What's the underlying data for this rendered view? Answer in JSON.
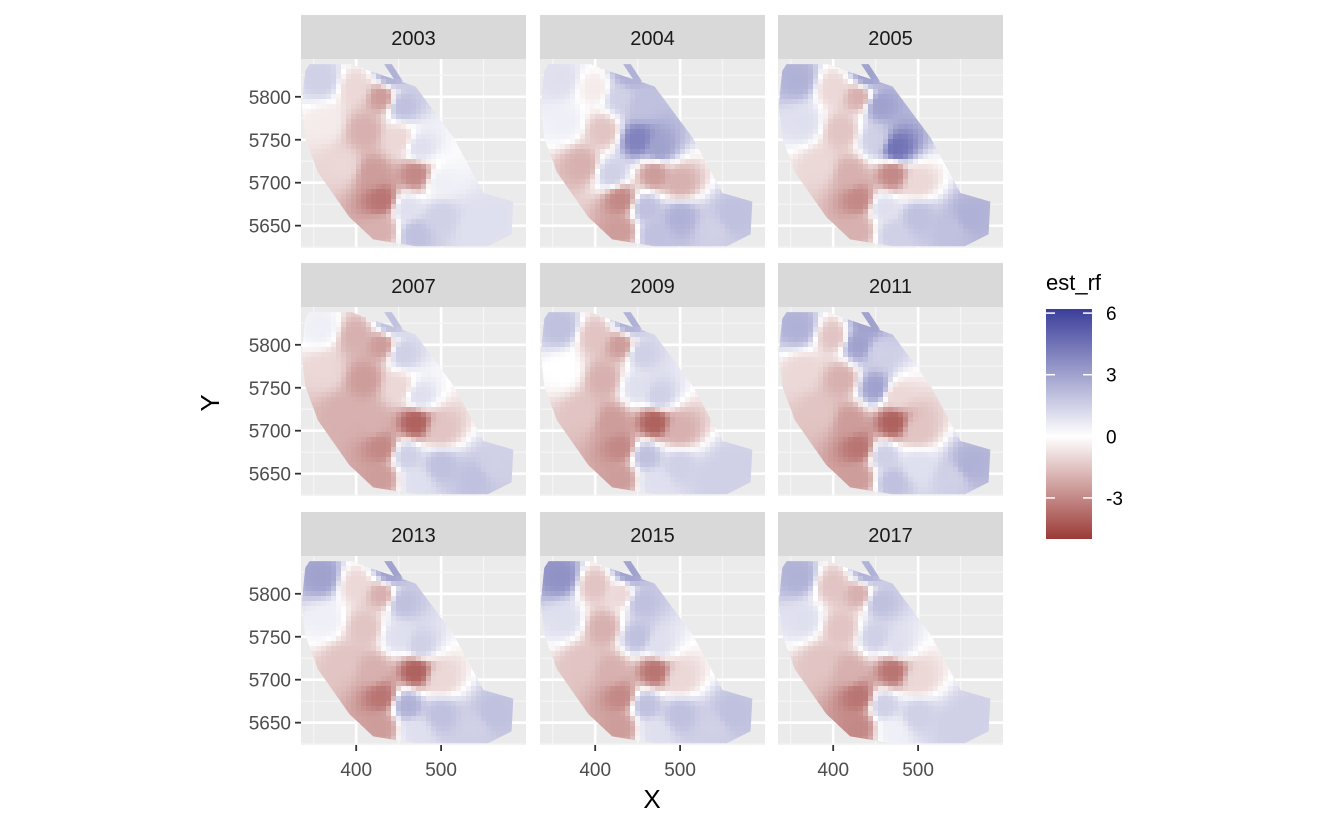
{
  "chart_data": {
    "type": "heatmap",
    "facet_labels": [
      "2003",
      "2004",
      "2005",
      "2007",
      "2009",
      "2011",
      "2013",
      "2015",
      "2017"
    ],
    "xlabel": "X",
    "ylabel": "Y",
    "x_ticks": [
      400,
      500
    ],
    "y_ticks": [
      5650,
      5700,
      5750,
      5800
    ],
    "xlim": [
      335,
      600
    ],
    "ylim": [
      5624,
      5844
    ],
    "legend": {
      "title": "est_rf",
      "ticks": [
        6,
        3,
        0,
        -3
      ],
      "range": [
        -5,
        6.2
      ],
      "placement": "right",
      "low_color": "#9b3a36",
      "mid_color": "#ffffff",
      "high_color": "#3b3e9a"
    },
    "grid": true,
    "panel_background": "#ebebeb",
    "strip_background": "#d9d9d9",
    "region_outline": [
      [
        345,
        5838
      ],
      [
        395,
        5838
      ],
      [
        410,
        5832
      ],
      [
        470,
        5812
      ],
      [
        515,
        5752
      ],
      [
        550,
        5688
      ],
      [
        585,
        5678
      ],
      [
        583,
        5640
      ],
      [
        555,
        5626
      ],
      [
        470,
        5626
      ],
      [
        420,
        5634
      ],
      [
        392,
        5660
      ],
      [
        355,
        5712
      ],
      [
        340,
        5752
      ],
      [
        336,
        5790
      ],
      [
        340,
        5830
      ]
    ],
    "region_outline_b": [
      [
        433,
        5838
      ],
      [
        442,
        5838
      ],
      [
        455,
        5818
      ],
      [
        449,
        5814
      ]
    ],
    "panels": [
      {
        "label": "2003",
        "points": [
          {
            "x": 360,
            "y": 5820,
            "v": 1.5
          },
          {
            "x": 400,
            "y": 5810,
            "v": -1.0
          },
          {
            "x": 430,
            "y": 5800,
            "v": -2.5
          },
          {
            "x": 455,
            "y": 5790,
            "v": 2.0
          },
          {
            "x": 365,
            "y": 5770,
            "v": -0.5
          },
          {
            "x": 410,
            "y": 5760,
            "v": -2.0
          },
          {
            "x": 450,
            "y": 5750,
            "v": -1.0
          },
          {
            "x": 475,
            "y": 5740,
            "v": 1.0
          },
          {
            "x": 385,
            "y": 5720,
            "v": -1.0
          },
          {
            "x": 420,
            "y": 5710,
            "v": -2.5
          },
          {
            "x": 470,
            "y": 5710,
            "v": -3.0
          },
          {
            "x": 500,
            "y": 5700,
            "v": 0.5
          },
          {
            "x": 430,
            "y": 5680,
            "v": -3.5
          },
          {
            "x": 460,
            "y": 5670,
            "v": 1.0
          },
          {
            "x": 500,
            "y": 5660,
            "v": 1.5
          },
          {
            "x": 560,
            "y": 5660,
            "v": 1.0
          },
          {
            "x": 430,
            "y": 5645,
            "v": -2.0
          },
          {
            "x": 470,
            "y": 5640,
            "v": 2.0
          },
          {
            "x": 540,
            "y": 5645,
            "v": 1.0
          },
          {
            "x": 440,
            "y": 5825,
            "v": 2.5
          }
        ]
      },
      {
        "label": "2004",
        "points": [
          {
            "x": 360,
            "y": 5820,
            "v": 1.0
          },
          {
            "x": 400,
            "y": 5810,
            "v": -0.5
          },
          {
            "x": 430,
            "y": 5800,
            "v": 1.5
          },
          {
            "x": 455,
            "y": 5790,
            "v": 2.0
          },
          {
            "x": 365,
            "y": 5770,
            "v": 0.5
          },
          {
            "x": 410,
            "y": 5760,
            "v": -1.5
          },
          {
            "x": 450,
            "y": 5750,
            "v": 4.0
          },
          {
            "x": 475,
            "y": 5740,
            "v": 3.0
          },
          {
            "x": 385,
            "y": 5720,
            "v": -2.0
          },
          {
            "x": 420,
            "y": 5710,
            "v": 1.5
          },
          {
            "x": 470,
            "y": 5710,
            "v": -2.5
          },
          {
            "x": 500,
            "y": 5700,
            "v": -2.0
          },
          {
            "x": 430,
            "y": 5680,
            "v": -3.0
          },
          {
            "x": 460,
            "y": 5670,
            "v": 2.0
          },
          {
            "x": 500,
            "y": 5660,
            "v": 2.5
          },
          {
            "x": 560,
            "y": 5660,
            "v": 2.0
          },
          {
            "x": 430,
            "y": 5645,
            "v": -2.5
          },
          {
            "x": 470,
            "y": 5640,
            "v": 2.0
          },
          {
            "x": 540,
            "y": 5645,
            "v": 1.5
          },
          {
            "x": 440,
            "y": 5825,
            "v": 2.5
          }
        ]
      },
      {
        "label": "2005",
        "points": [
          {
            "x": 360,
            "y": 5820,
            "v": 2.5
          },
          {
            "x": 400,
            "y": 5810,
            "v": -1.0
          },
          {
            "x": 430,
            "y": 5800,
            "v": -2.0
          },
          {
            "x": 455,
            "y": 5790,
            "v": 3.0
          },
          {
            "x": 365,
            "y": 5770,
            "v": 1.0
          },
          {
            "x": 410,
            "y": 5760,
            "v": -1.5
          },
          {
            "x": 450,
            "y": 5750,
            "v": 1.5
          },
          {
            "x": 475,
            "y": 5740,
            "v": 4.5
          },
          {
            "x": 385,
            "y": 5720,
            "v": -1.0
          },
          {
            "x": 420,
            "y": 5710,
            "v": -2.0
          },
          {
            "x": 470,
            "y": 5710,
            "v": -3.0
          },
          {
            "x": 500,
            "y": 5700,
            "v": -1.0
          },
          {
            "x": 430,
            "y": 5680,
            "v": -3.0
          },
          {
            "x": 460,
            "y": 5670,
            "v": 1.0
          },
          {
            "x": 500,
            "y": 5660,
            "v": 2.0
          },
          {
            "x": 560,
            "y": 5660,
            "v": 2.5
          },
          {
            "x": 430,
            "y": 5645,
            "v": -2.0
          },
          {
            "x": 470,
            "y": 5640,
            "v": 1.5
          },
          {
            "x": 540,
            "y": 5645,
            "v": 2.0
          },
          {
            "x": 440,
            "y": 5825,
            "v": 3.0
          }
        ]
      },
      {
        "label": "2007",
        "points": [
          {
            "x": 360,
            "y": 5820,
            "v": 0.5
          },
          {
            "x": 400,
            "y": 5810,
            "v": -2.0
          },
          {
            "x": 430,
            "y": 5800,
            "v": -2.5
          },
          {
            "x": 455,
            "y": 5790,
            "v": 1.5
          },
          {
            "x": 365,
            "y": 5770,
            "v": -1.0
          },
          {
            "x": 410,
            "y": 5760,
            "v": -2.5
          },
          {
            "x": 450,
            "y": 5750,
            "v": -1.0
          },
          {
            "x": 475,
            "y": 5740,
            "v": 1.0
          },
          {
            "x": 385,
            "y": 5720,
            "v": -2.0
          },
          {
            "x": 420,
            "y": 5710,
            "v": -2.0
          },
          {
            "x": 470,
            "y": 5710,
            "v": -4.0
          },
          {
            "x": 500,
            "y": 5700,
            "v": -1.5
          },
          {
            "x": 430,
            "y": 5680,
            "v": -3.0
          },
          {
            "x": 460,
            "y": 5670,
            "v": 1.5
          },
          {
            "x": 500,
            "y": 5660,
            "v": 2.0
          },
          {
            "x": 560,
            "y": 5660,
            "v": 1.5
          },
          {
            "x": 430,
            "y": 5645,
            "v": -2.5
          },
          {
            "x": 470,
            "y": 5640,
            "v": 1.0
          },
          {
            "x": 540,
            "y": 5645,
            "v": 2.0
          },
          {
            "x": 440,
            "y": 5825,
            "v": 2.0
          }
        ]
      },
      {
        "label": "2009",
        "points": [
          {
            "x": 360,
            "y": 5820,
            "v": 2.0
          },
          {
            "x": 400,
            "y": 5810,
            "v": -1.5
          },
          {
            "x": 430,
            "y": 5800,
            "v": -2.5
          },
          {
            "x": 455,
            "y": 5790,
            "v": 1.5
          },
          {
            "x": 365,
            "y": 5770,
            "v": 0.0
          },
          {
            "x": 410,
            "y": 5760,
            "v": -2.0
          },
          {
            "x": 450,
            "y": 5750,
            "v": 1.0
          },
          {
            "x": 475,
            "y": 5740,
            "v": 1.5
          },
          {
            "x": 385,
            "y": 5720,
            "v": -1.5
          },
          {
            "x": 420,
            "y": 5710,
            "v": -2.5
          },
          {
            "x": 470,
            "y": 5710,
            "v": -4.0
          },
          {
            "x": 500,
            "y": 5700,
            "v": -2.0
          },
          {
            "x": 430,
            "y": 5680,
            "v": -3.0
          },
          {
            "x": 460,
            "y": 5670,
            "v": 2.0
          },
          {
            "x": 500,
            "y": 5660,
            "v": 1.5
          },
          {
            "x": 560,
            "y": 5660,
            "v": 1.5
          },
          {
            "x": 430,
            "y": 5645,
            "v": -2.5
          },
          {
            "x": 470,
            "y": 5640,
            "v": 1.0
          },
          {
            "x": 540,
            "y": 5645,
            "v": 1.5
          },
          {
            "x": 440,
            "y": 5825,
            "v": 2.5
          }
        ]
      },
      {
        "label": "2011",
        "points": [
          {
            "x": 360,
            "y": 5820,
            "v": 2.5
          },
          {
            "x": 400,
            "y": 5810,
            "v": -1.5
          },
          {
            "x": 430,
            "y": 5800,
            "v": 3.0
          },
          {
            "x": 455,
            "y": 5790,
            "v": 1.5
          },
          {
            "x": 365,
            "y": 5770,
            "v": -1.0
          },
          {
            "x": 410,
            "y": 5760,
            "v": -2.0
          },
          {
            "x": 450,
            "y": 5750,
            "v": 3.0
          },
          {
            "x": 475,
            "y": 5740,
            "v": -1.0
          },
          {
            "x": 385,
            "y": 5720,
            "v": -1.5
          },
          {
            "x": 420,
            "y": 5710,
            "v": -2.5
          },
          {
            "x": 470,
            "y": 5710,
            "v": -4.0
          },
          {
            "x": 500,
            "y": 5700,
            "v": -1.5
          },
          {
            "x": 430,
            "y": 5680,
            "v": -3.5
          },
          {
            "x": 460,
            "y": 5670,
            "v": 1.5
          },
          {
            "x": 500,
            "y": 5660,
            "v": 1.0
          },
          {
            "x": 560,
            "y": 5660,
            "v": 2.5
          },
          {
            "x": 430,
            "y": 5645,
            "v": -2.5
          },
          {
            "x": 470,
            "y": 5640,
            "v": 2.0
          },
          {
            "x": 540,
            "y": 5645,
            "v": 1.5
          },
          {
            "x": 440,
            "y": 5825,
            "v": 3.0
          }
        ]
      },
      {
        "label": "2013",
        "points": [
          {
            "x": 360,
            "y": 5820,
            "v": 3.0
          },
          {
            "x": 400,
            "y": 5810,
            "v": -1.0
          },
          {
            "x": 430,
            "y": 5800,
            "v": -2.0
          },
          {
            "x": 455,
            "y": 5790,
            "v": 2.0
          },
          {
            "x": 365,
            "y": 5770,
            "v": 0.5
          },
          {
            "x": 410,
            "y": 5760,
            "v": -1.5
          },
          {
            "x": 450,
            "y": 5750,
            "v": 1.0
          },
          {
            "x": 475,
            "y": 5740,
            "v": 1.5
          },
          {
            "x": 385,
            "y": 5720,
            "v": -1.5
          },
          {
            "x": 420,
            "y": 5710,
            "v": -2.0
          },
          {
            "x": 470,
            "y": 5710,
            "v": -4.0
          },
          {
            "x": 500,
            "y": 5700,
            "v": -1.0
          },
          {
            "x": 430,
            "y": 5680,
            "v": -3.5
          },
          {
            "x": 460,
            "y": 5670,
            "v": 2.5
          },
          {
            "x": 500,
            "y": 5660,
            "v": 2.0
          },
          {
            "x": 560,
            "y": 5660,
            "v": 2.0
          },
          {
            "x": 430,
            "y": 5645,
            "v": -2.5
          },
          {
            "x": 470,
            "y": 5640,
            "v": 1.0
          },
          {
            "x": 540,
            "y": 5645,
            "v": 1.5
          },
          {
            "x": 440,
            "y": 5825,
            "v": 3.0
          }
        ]
      },
      {
        "label": "2015",
        "points": [
          {
            "x": 360,
            "y": 5820,
            "v": 3.5
          },
          {
            "x": 400,
            "y": 5810,
            "v": -1.5
          },
          {
            "x": 430,
            "y": 5800,
            "v": -1.0
          },
          {
            "x": 455,
            "y": 5790,
            "v": 2.0
          },
          {
            "x": 365,
            "y": 5770,
            "v": 1.0
          },
          {
            "x": 410,
            "y": 5760,
            "v": -2.0
          },
          {
            "x": 450,
            "y": 5750,
            "v": 2.0
          },
          {
            "x": 475,
            "y": 5740,
            "v": 1.0
          },
          {
            "x": 385,
            "y": 5720,
            "v": -1.5
          },
          {
            "x": 420,
            "y": 5710,
            "v": -2.0
          },
          {
            "x": 470,
            "y": 5710,
            "v": -3.5
          },
          {
            "x": 500,
            "y": 5700,
            "v": -1.0
          },
          {
            "x": 430,
            "y": 5680,
            "v": -3.0
          },
          {
            "x": 460,
            "y": 5670,
            "v": 2.0
          },
          {
            "x": 500,
            "y": 5660,
            "v": 2.0
          },
          {
            "x": 560,
            "y": 5660,
            "v": 2.0
          },
          {
            "x": 430,
            "y": 5645,
            "v": -2.5
          },
          {
            "x": 470,
            "y": 5640,
            "v": 1.0
          },
          {
            "x": 540,
            "y": 5645,
            "v": 1.5
          },
          {
            "x": 440,
            "y": 5825,
            "v": 3.0
          }
        ]
      },
      {
        "label": "2017",
        "points": [
          {
            "x": 360,
            "y": 5820,
            "v": 2.5
          },
          {
            "x": 400,
            "y": 5810,
            "v": -1.5
          },
          {
            "x": 430,
            "y": 5800,
            "v": -2.0
          },
          {
            "x": 455,
            "y": 5790,
            "v": 2.0
          },
          {
            "x": 365,
            "y": 5770,
            "v": 1.0
          },
          {
            "x": 410,
            "y": 5760,
            "v": -1.5
          },
          {
            "x": 450,
            "y": 5750,
            "v": 1.5
          },
          {
            "x": 475,
            "y": 5740,
            "v": 1.0
          },
          {
            "x": 385,
            "y": 5720,
            "v": -1.5
          },
          {
            "x": 420,
            "y": 5710,
            "v": -2.0
          },
          {
            "x": 470,
            "y": 5710,
            "v": -3.5
          },
          {
            "x": 500,
            "y": 5700,
            "v": -1.0
          },
          {
            "x": 430,
            "y": 5680,
            "v": -3.5
          },
          {
            "x": 460,
            "y": 5670,
            "v": 1.5
          },
          {
            "x": 500,
            "y": 5660,
            "v": 1.5
          },
          {
            "x": 560,
            "y": 5660,
            "v": 1.5
          },
          {
            "x": 430,
            "y": 5645,
            "v": -3.0
          },
          {
            "x": 470,
            "y": 5640,
            "v": 0.5
          },
          {
            "x": 540,
            "y": 5645,
            "v": 1.5
          },
          {
            "x": 440,
            "y": 5825,
            "v": 2.5
          }
        ]
      }
    ]
  }
}
